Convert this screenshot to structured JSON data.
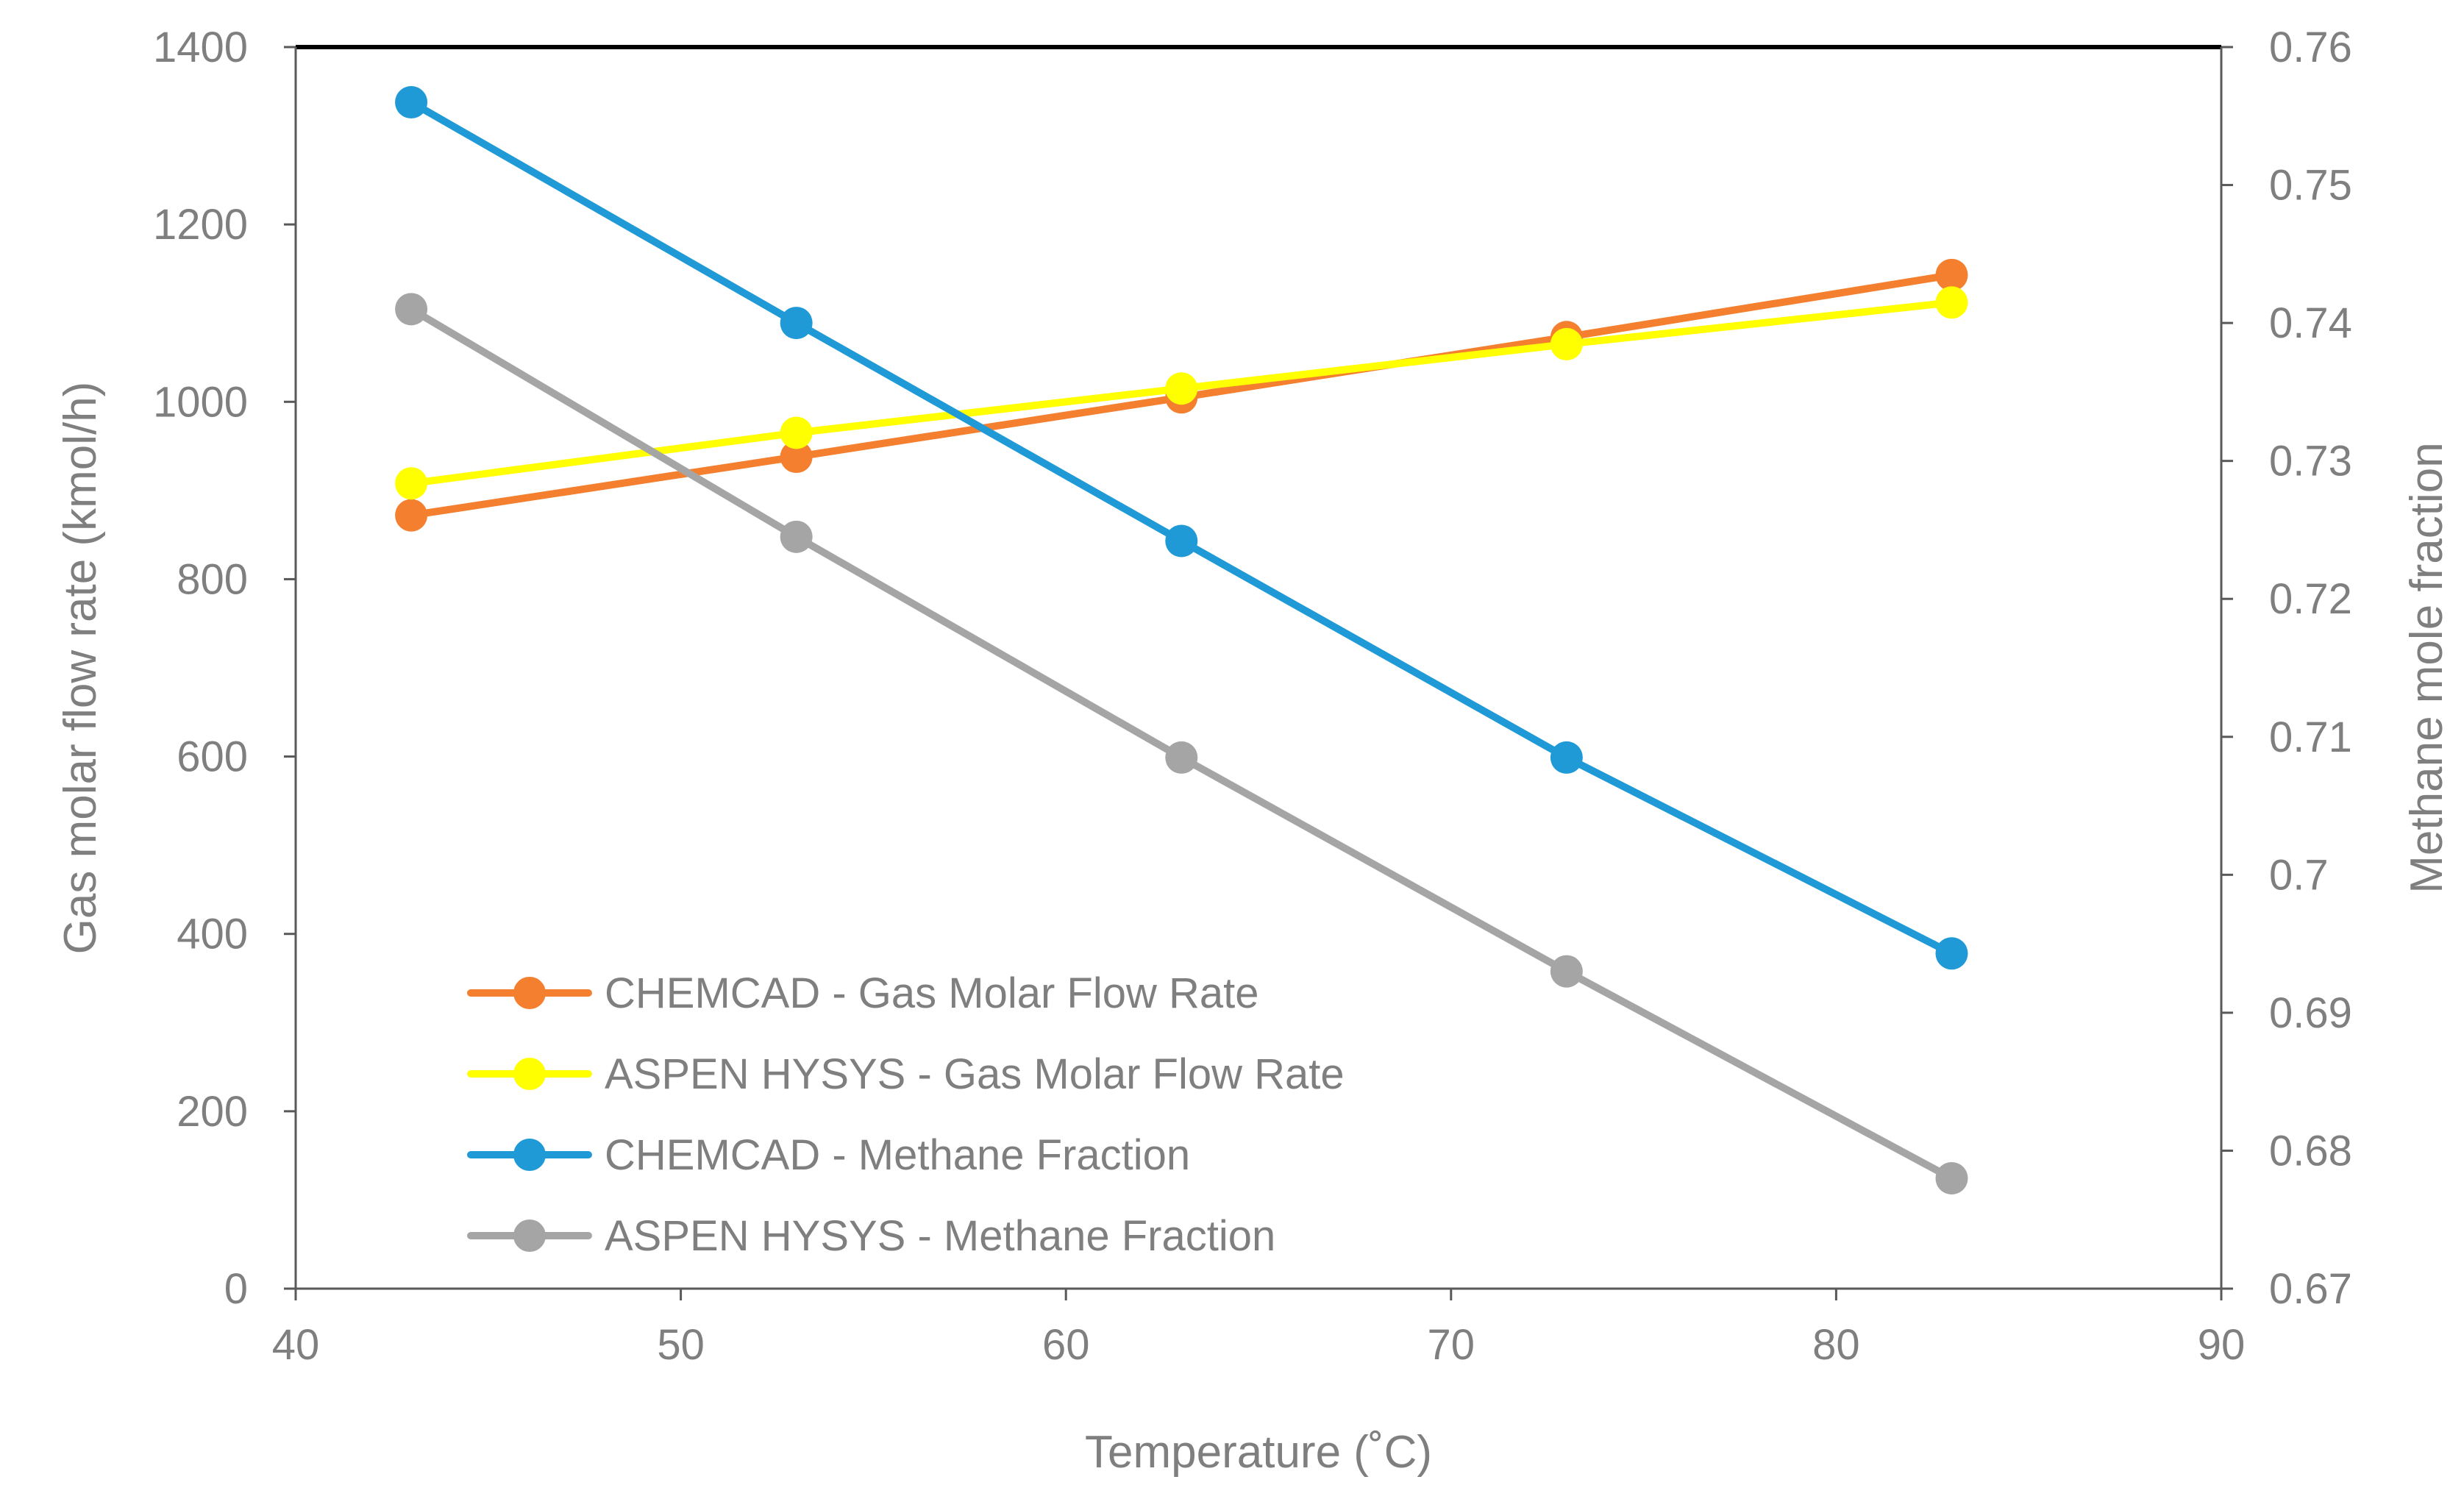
{
  "chart_data": {
    "type": "line",
    "xlabel": "Temperature  (˚C)",
    "ylabel_left": "Gas molar flow rate  (kmol/h)",
    "ylabel_right": "Methane mole fraction",
    "xlim": [
      40,
      90
    ],
    "ylim_left": [
      0,
      1400
    ],
    "ylim_right": [
      0.67,
      0.76
    ],
    "x_ticks": [
      "40",
      "50",
      "60",
      "70",
      "80",
      "90"
    ],
    "y_left_ticks": [
      "0",
      "200",
      "400",
      "600",
      "800",
      "1000",
      "1200",
      "1400"
    ],
    "y_right_ticks": [
      "0.67",
      "0.68",
      "0.69",
      "0.7",
      "0.71",
      "0.72",
      "0.73",
      "0.74",
      "0.75",
      "0.76"
    ],
    "grid": false,
    "legend_position": "bottom-left",
    "series": [
      {
        "name": "CHEMCAD - Gas Molar Flow Rate",
        "axis": "left",
        "color": "#F47F2F",
        "x": [
          43,
          53,
          63,
          73,
          83
        ],
        "y": [
          872,
          938,
          1005,
          1073,
          1143
        ]
      },
      {
        "name": "ASPEN HYSYS - Gas Molar Flow Rate",
        "axis": "left",
        "color": "#FFFF00",
        "x": [
          43,
          53,
          63,
          73,
          83
        ],
        "y": [
          908,
          965,
          1015,
          1065,
          1112
        ]
      },
      {
        "name": "CHEMCAD - Methane Fraction",
        "axis": "right",
        "color": "#1F9AD7",
        "x": [
          43,
          53,
          63,
          73,
          83
        ],
        "y": [
          0.756,
          0.74,
          0.7242,
          0.7085,
          0.6943
        ]
      },
      {
        "name": "ASPEN HYSYS - Methane Fraction",
        "axis": "right",
        "color": "#A5A5A5",
        "x": [
          43,
          53,
          63,
          73,
          83
        ],
        "y": [
          0.741,
          0.7245,
          0.7085,
          0.693,
          0.678
        ]
      }
    ]
  }
}
